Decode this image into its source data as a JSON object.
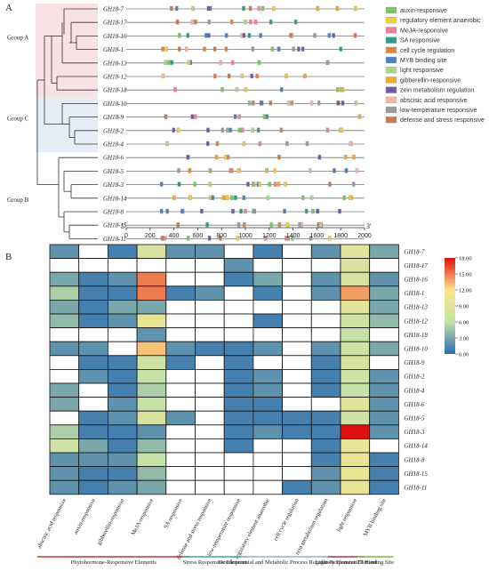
{
  "panel_a": {
    "label": "A",
    "groups": [
      {
        "name": "Group A",
        "color": "#f7d6dc"
      },
      {
        "name": "Group C",
        "color": "#d8e6f5"
      },
      {
        "name": "Group B",
        "color": "#ffffff"
      }
    ],
    "genes": [
      "GH18-7",
      "GH18-17",
      "GH18-16",
      "GH18-1",
      "GH18-13",
      "GH18-12",
      "GH18-18",
      "GH18-10",
      "GH18-9",
      "GH18-2",
      "GH18-4",
      "GH18-6",
      "GH18-5",
      "GH18-3",
      "GH18-14",
      "GH18-8",
      "GH18-15",
      "GH18-11"
    ],
    "legend": [
      {
        "label": "auxin-responsive",
        "color": "#7cc464"
      },
      {
        "label": "regulatory element  anaerobic",
        "color": "#f4cc3c"
      },
      {
        "label": "MeJA-responsive",
        "color": "#f07fa0"
      },
      {
        "label": "SA responsive",
        "color": "#2d9a8c"
      },
      {
        "label": "cell cycle regulation",
        "color": "#e8833a"
      },
      {
        "label": "MYB binding site",
        "color": "#4a7fc0"
      },
      {
        "label": "light responsive",
        "color": "#a9d88a"
      },
      {
        "label": "gibberellin-responsive",
        "color": "#f0a838"
      },
      {
        "label": "zein metabolism regulation",
        "color": "#6a5aa8"
      },
      {
        "label": "abscisic acid responsive",
        "color": "#f2b7a0"
      },
      {
        "label": "low-temperature responsive",
        "color": "#9a9a9a"
      },
      {
        "label": "defense and stress responsive",
        "color": "#c97a55"
      }
    ],
    "axis": {
      "start_label": "5'",
      "end_label": "3'",
      "ticks": [
        0,
        200,
        400,
        600,
        800,
        1000,
        1200,
        1400,
        1600,
        1800,
        2000
      ],
      "range": [
        0,
        2000
      ]
    }
  },
  "panel_b": {
    "label": "B",
    "genes": [
      "GH18-7",
      "GH18-17",
      "GH18-16",
      "GH18-1",
      "GH18-13",
      "GH18-12",
      "GH18-18",
      "GH18-10",
      "GH18-9",
      "GH18-2",
      "GH18-4",
      "GH18-6",
      "GH18-5",
      "GH18-3",
      "GH18-14",
      "GH18-8",
      "GH18-15",
      "GH18-11"
    ],
    "columns": [
      "abscisic acid responsive",
      "auxin-responsive",
      "gibberellin-responsive",
      "MeJA-responsive",
      "SA responsive",
      "defense and stress responsive",
      "low-temperature responsive",
      "regulatory element anaerobic",
      "cell cycle regulation",
      "zein metabolism regulation",
      "light responsive",
      "MYB binding site"
    ],
    "colorbar": {
      "ticks": [
        "18.00",
        "15.00",
        "12.00",
        "9.00",
        "6.00",
        "3.00",
        "0.00"
      ],
      "min": 0,
      "max": 18
    },
    "categories": [
      {
        "label": "Phytohormone-Responsive Elements",
        "color": "#c0392b"
      },
      {
        "label": "Stress Responsive Elements",
        "color": "#3aa9a0"
      },
      {
        "label": "Developmental and Metabolic Process Regulatory Elements",
        "color": "#8fb0d8"
      },
      {
        "label": "Light-Responsive Element",
        "color": "#b03060"
      },
      {
        "label": "TF Binding Site",
        "color": "#7cbf3c"
      }
    ]
  },
  "chart_data": {
    "type": "heatmap",
    "rows": [
      "GH18-7",
      "GH18-17",
      "GH18-16",
      "GH18-1",
      "GH18-13",
      "GH18-12",
      "GH18-18",
      "GH18-10",
      "GH18-9",
      "GH18-2",
      "GH18-4",
      "GH18-6",
      "GH18-5",
      "GH18-3",
      "GH18-14",
      "GH18-8",
      "GH18-15",
      "GH18-11"
    ],
    "columns": [
      "abscisic acid responsive",
      "auxin-responsive",
      "gibberellin-responsive",
      "MeJA-responsive",
      "SA responsive",
      "defense and stress responsive",
      "low-temperature responsive",
      "regulatory element anaerobic",
      "cell cycle regulation",
      "zein metabolism regulation",
      "light responsive",
      "MYB binding site"
    ],
    "values": [
      [
        2,
        0,
        1,
        8,
        2,
        2,
        0,
        1,
        0,
        2,
        9,
        3
      ],
      [
        0,
        0,
        0,
        0,
        0,
        0,
        2,
        0,
        0,
        0,
        8,
        0
      ],
      [
        3,
        1,
        2,
        15,
        0,
        0,
        1,
        3,
        0,
        2,
        8,
        2
      ],
      [
        5,
        1,
        1,
        15,
        1,
        2,
        0,
        1,
        0,
        2,
        14,
        3
      ],
      [
        3,
        1,
        3,
        3,
        0,
        0,
        0,
        0,
        0,
        0,
        9,
        3
      ],
      [
        4,
        1,
        2,
        10,
        0,
        0,
        0,
        1,
        0,
        0,
        7,
        4
      ],
      [
        0,
        0,
        0,
        2,
        0,
        0,
        0,
        0,
        0,
        0,
        6,
        0
      ],
      [
        2,
        2,
        0,
        13,
        2,
        1,
        1,
        2,
        0,
        2,
        7,
        3
      ],
      [
        0,
        1,
        1,
        7,
        1,
        0,
        1,
        0,
        0,
        1,
        8,
        0
      ],
      [
        0,
        2,
        1,
        6,
        0,
        0,
        1,
        2,
        0,
        1,
        7,
        2
      ],
      [
        3,
        0,
        1,
        5,
        0,
        0,
        1,
        2,
        0,
        1,
        6,
        2
      ],
      [
        3,
        0,
        2,
        6,
        0,
        0,
        1,
        1,
        0,
        0,
        9,
        2
      ],
      [
        0,
        1,
        2,
        8,
        2,
        0,
        1,
        1,
        1,
        1,
        7,
        2
      ],
      [
        5,
        1,
        1,
        2,
        0,
        0,
        1,
        2,
        1,
        1,
        18,
        2
      ],
      [
        7,
        3,
        1,
        4,
        0,
        0,
        1,
        0,
        0,
        1,
        10,
        0
      ],
      [
        2,
        2,
        2,
        6,
        0,
        0,
        0,
        0,
        0,
        1,
        10,
        1
      ],
      [
        2,
        1,
        1,
        4,
        0,
        0,
        0,
        0,
        0,
        2,
        10,
        1
      ],
      [
        2,
        1,
        2,
        3,
        0,
        0,
        0,
        0,
        1,
        2,
        10,
        1
      ]
    ],
    "color_scale": {
      "min": 0,
      "max": 18,
      "colors": [
        "#2b6cb0",
        "#c6e1a8",
        "#fbe48a",
        "#e01010"
      ]
    }
  }
}
